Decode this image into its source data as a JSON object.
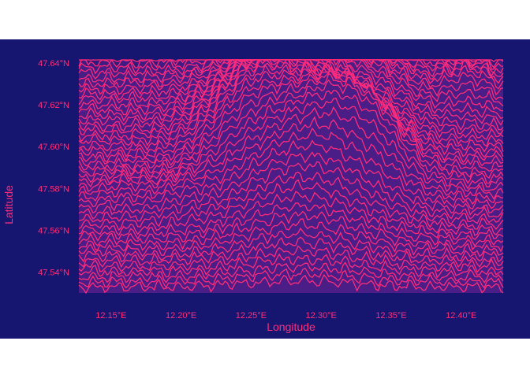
{
  "colors": {
    "background": "#161670",
    "line": "#ff2b7a",
    "fill": "#4a1f86",
    "text": "#ff2b7a"
  },
  "chart_data": {
    "type": "ridgeline",
    "title": "",
    "xlabel": "Longitude",
    "ylabel": "Latitude",
    "xlim": [
      12.127,
      12.43
    ],
    "ylim": [
      47.53,
      47.64
    ],
    "x_ticks": [
      {
        "value": 12.15,
        "label": "12.15°E"
      },
      {
        "value": 12.2,
        "label": "12.20°E"
      },
      {
        "value": 12.25,
        "label": "12.25°E"
      },
      {
        "value": 12.3,
        "label": "12.30°E"
      },
      {
        "value": 12.35,
        "label": "12.35°E"
      },
      {
        "value": 12.4,
        "label": "12.40°E"
      }
    ],
    "y_ticks": [
      {
        "value": 47.54,
        "label": "47.54°N"
      },
      {
        "value": 47.56,
        "label": "47.56°N"
      },
      {
        "value": 47.58,
        "label": "47.58°N"
      },
      {
        "value": 47.6,
        "label": "47.60°N"
      },
      {
        "value": 47.62,
        "label": "47.62°N"
      },
      {
        "value": 47.64,
        "label": "47.64°N"
      }
    ],
    "grid": false,
    "legend": "none",
    "ridge_spacing_deg": 0.0025,
    "height_unit_deg": 0.001,
    "peaks": [
      {
        "lon": 12.285,
        "lat": 47.575,
        "height": 28,
        "width": 0.055
      },
      {
        "lon": 12.315,
        "lat": 47.585,
        "height": 18,
        "width": 0.03
      },
      {
        "lon": 12.345,
        "lat": 47.585,
        "height": 14,
        "width": 0.025
      },
      {
        "lon": 12.245,
        "lat": 47.595,
        "height": 14,
        "width": 0.035
      },
      {
        "lon": 12.27,
        "lat": 47.615,
        "height": 20,
        "width": 0.05
      },
      {
        "lon": 12.33,
        "lat": 47.62,
        "height": 14,
        "width": 0.04
      },
      {
        "lon": 12.405,
        "lat": 47.625,
        "height": 8,
        "width": 0.02
      },
      {
        "lon": 12.2,
        "lat": 47.57,
        "height": 6,
        "width": 0.02
      },
      {
        "lon": 12.16,
        "lat": 47.575,
        "height": 4,
        "width": 0.02
      }
    ]
  }
}
